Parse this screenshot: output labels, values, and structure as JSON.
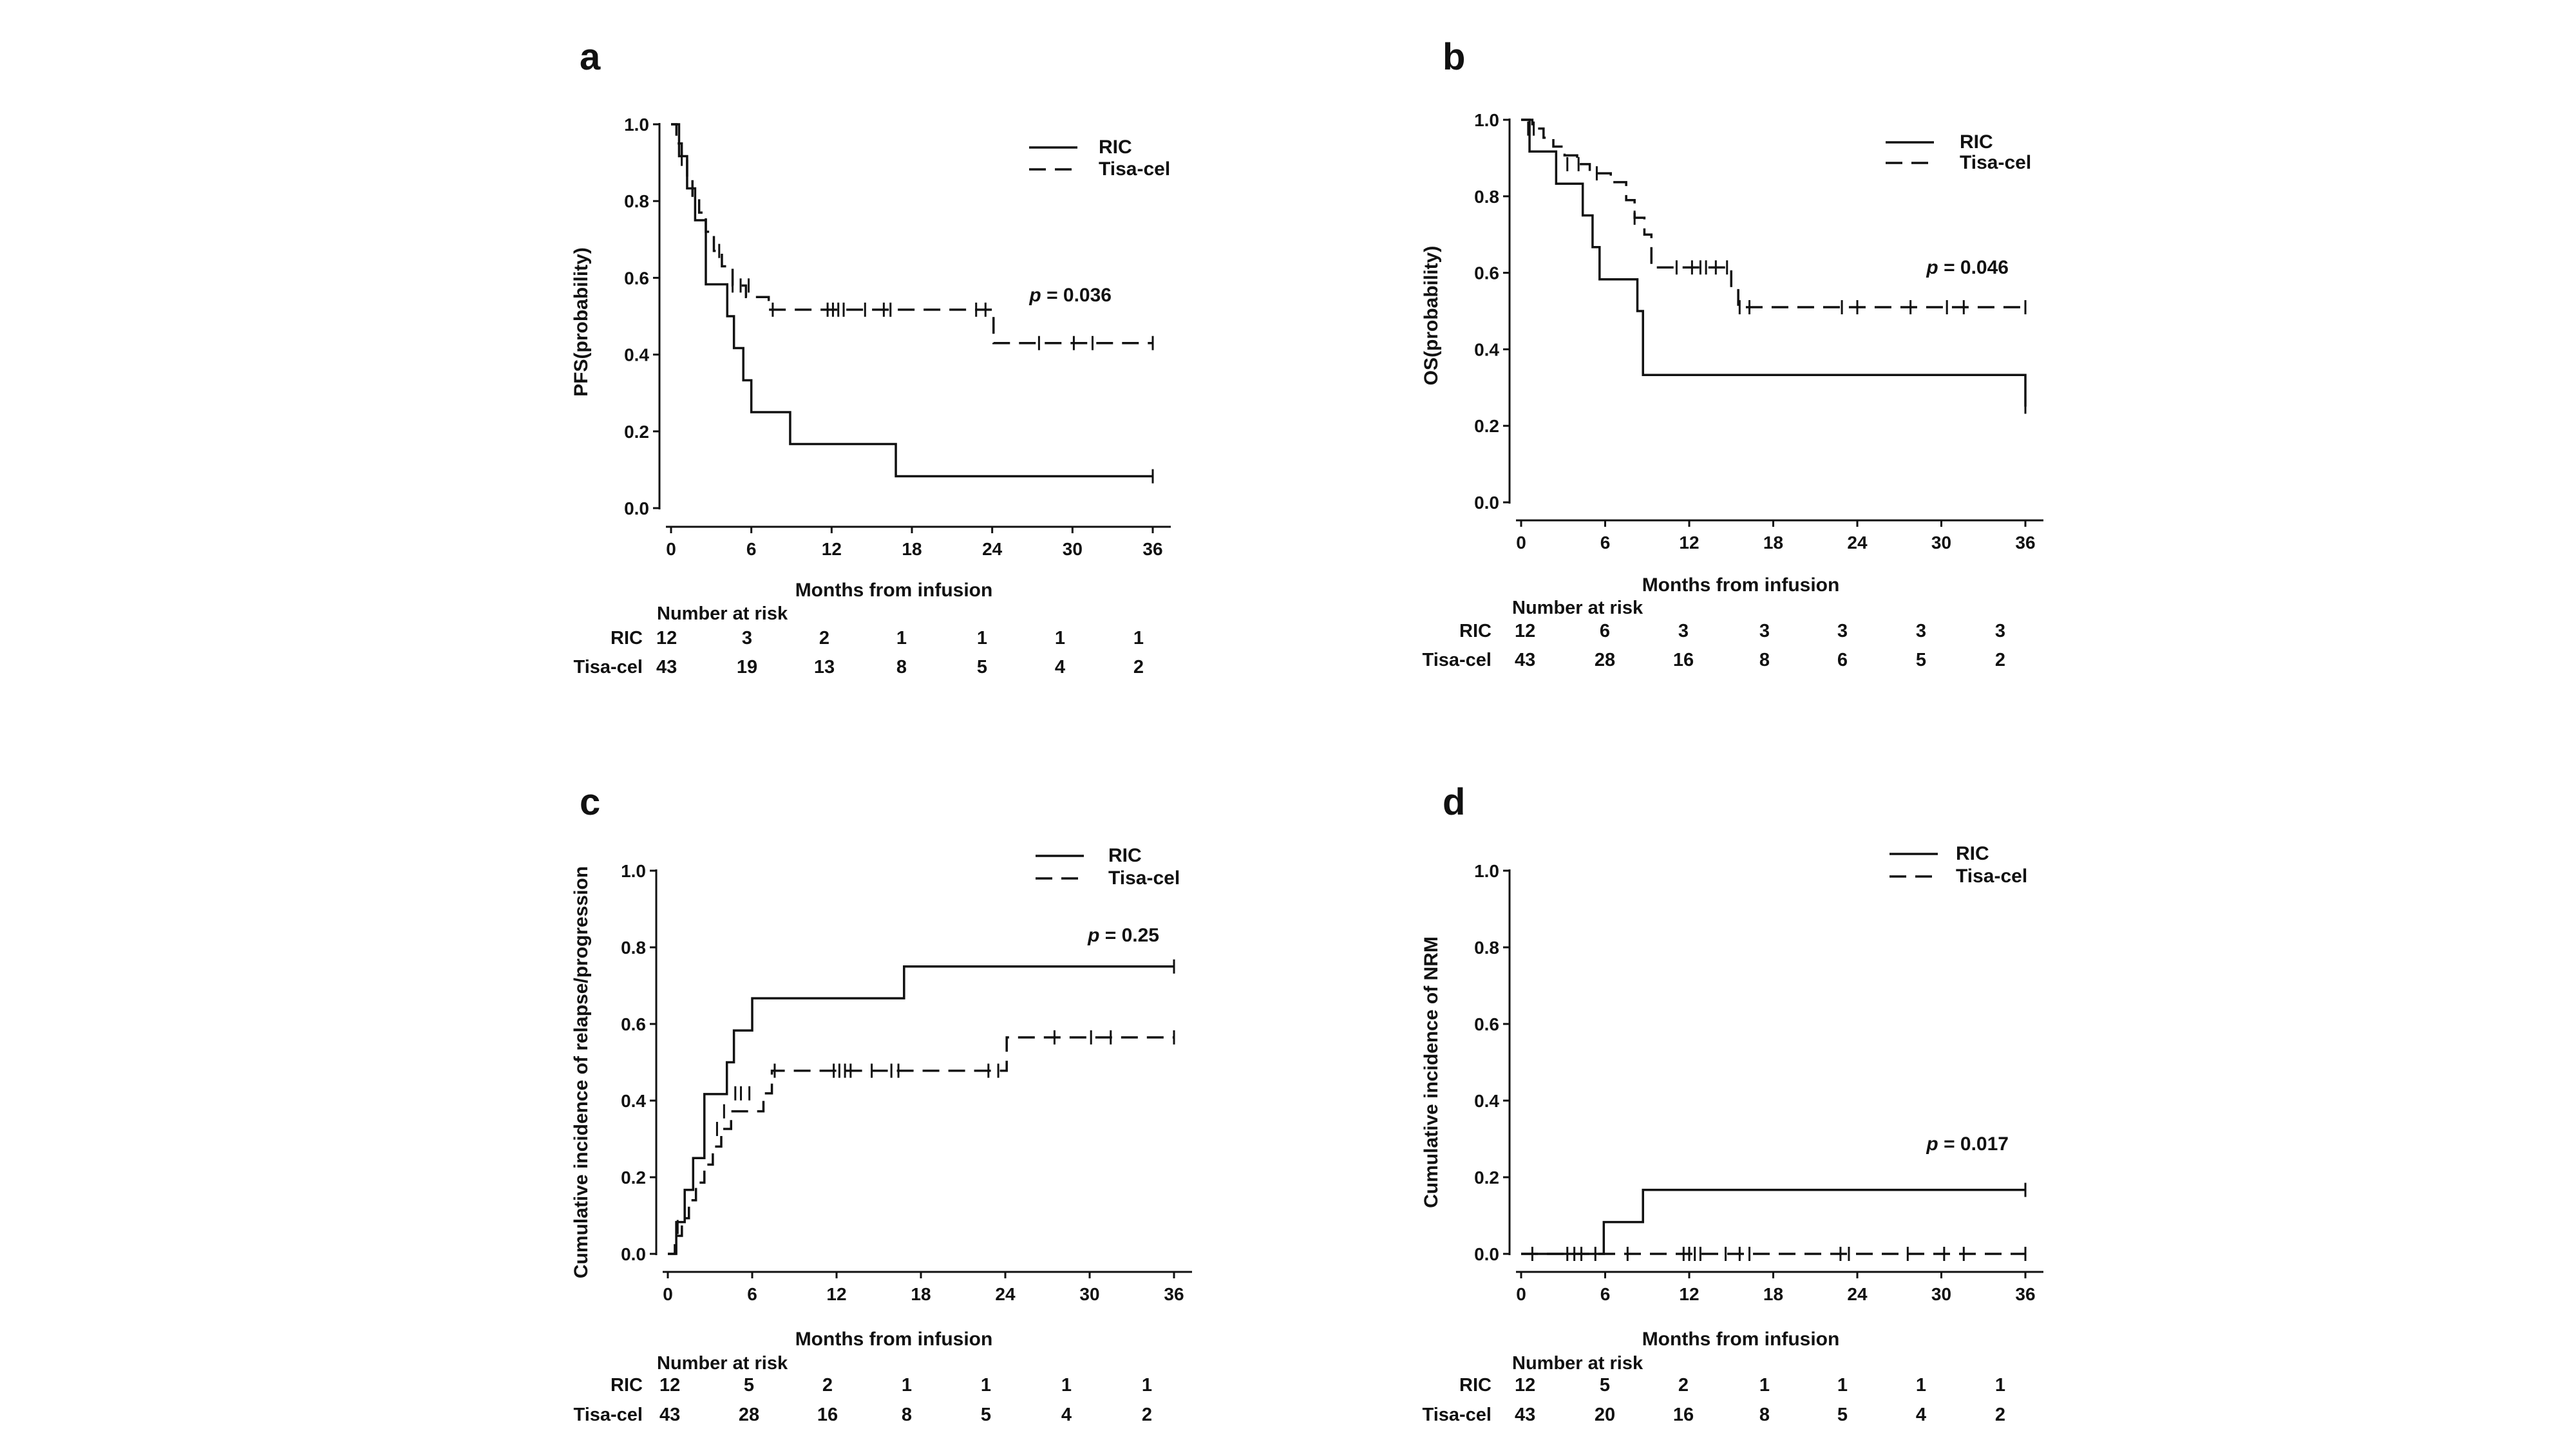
{
  "chart_data": [
    {
      "type": "line",
      "panel": "a",
      "ylabel": "PFS(probability)",
      "xlabel": "Months from infusion",
      "xticks": [
        0,
        6,
        12,
        18,
        24,
        30,
        36
      ],
      "yticks": [
        "0.0",
        "0.2",
        "0.4",
        "0.6",
        "0.8",
        "1.0"
      ],
      "xlim": [
        0,
        36
      ],
      "ylim": [
        0,
        1
      ],
      "p_value": "= 0.036",
      "series": [
        {
          "name": "RIC",
          "dash": false,
          "x": [
            0,
            0.6,
            1.2,
            1.8,
            2.6,
            4.2,
            4.7,
            5.4,
            6.0,
            8.9,
            16.8,
            36
          ],
          "y": [
            1.0,
            0.917,
            0.833,
            0.75,
            0.583,
            0.5,
            0.417,
            0.333,
            0.25,
            0.167,
            0.083,
            0.083
          ],
          "censored": [
            [
              36,
              0.083
            ]
          ]
        },
        {
          "name": "Tisa-cel",
          "dash": true,
          "x": [
            0,
            0.4,
            0.8,
            1.2,
            1.6,
            2.1,
            2.6,
            3.2,
            3.8,
            4.6,
            5.6,
            7.3,
            24.1,
            36
          ],
          "y": [
            1.0,
            0.95,
            0.91,
            0.86,
            0.81,
            0.77,
            0.72,
            0.67,
            0.63,
            0.58,
            0.55,
            0.517,
            0.43,
            0.43
          ],
          "censored": [
            [
              0.8,
              0.91
            ],
            [
              3.6,
              0.67
            ],
            [
              4.6,
              0.58
            ],
            [
              5.2,
              0.58
            ],
            [
              5.8,
              0.58
            ],
            [
              7.6,
              0.517
            ],
            [
              11.7,
              0.517
            ],
            [
              12.1,
              0.517
            ],
            [
              12.5,
              0.517
            ],
            [
              12.9,
              0.517
            ],
            [
              14.5,
              0.517
            ],
            [
              15.9,
              0.517
            ],
            [
              16.4,
              0.517
            ],
            [
              22.8,
              0.517
            ],
            [
              23.5,
              0.517
            ],
            [
              27.5,
              0.43
            ],
            [
              30.1,
              0.43
            ],
            [
              31.5,
              0.43
            ],
            [
              36,
              0.43
            ]
          ]
        }
      ],
      "risk_table": {
        "title": "Number at risk",
        "rows": [
          {
            "label": "RIC",
            "values": [
              "12",
              "3",
              "2",
              "1",
              "1",
              "1",
              "1"
            ]
          },
          {
            "label": "Tisa-cel",
            "values": [
              "43",
              "19",
              "13",
              "8",
              "5",
              "4",
              "2"
            ]
          }
        ]
      }
    },
    {
      "type": "line",
      "panel": "b",
      "ylabel": "OS(probability)",
      "xlabel": "Months from infusion",
      "xticks": [
        0,
        6,
        12,
        18,
        24,
        30,
        36
      ],
      "yticks": [
        "0.0",
        "0.2",
        "0.4",
        "0.6",
        "0.8",
        "1.0"
      ],
      "xlim": [
        0,
        36
      ],
      "ylim": [
        0,
        1
      ],
      "p_value": "= 0.046",
      "series": [
        {
          "name": "RIC",
          "dash": false,
          "x": [
            0,
            0.6,
            2.5,
            4.4,
            5.1,
            5.6,
            8.3,
            8.7,
            36
          ],
          "y": [
            1.0,
            0.917,
            0.833,
            0.75,
            0.667,
            0.583,
            0.5,
            0.333,
            0.25
          ],
          "censored": [
            [
              36,
              0.25
            ]
          ]
        },
        {
          "name": "Tisa-cel",
          "dash": true,
          "x": [
            0,
            0.8,
            1.6,
            2.3,
            3.1,
            4.0,
            4.9,
            6.4,
            7.5,
            8.1,
            8.8,
            9.3,
            15.0,
            15.5,
            36
          ],
          "y": [
            1.0,
            0.977,
            0.953,
            0.93,
            0.907,
            0.884,
            0.86,
            0.837,
            0.79,
            0.744,
            0.7,
            0.614,
            0.56,
            0.51,
            0.51
          ],
          "censored": [
            [
              0.5,
              0.977
            ],
            [
              0.9,
              0.977
            ],
            [
              3.3,
              0.884
            ],
            [
              4.1,
              0.884
            ],
            [
              5.4,
              0.86
            ],
            [
              8.1,
              0.744
            ],
            [
              11.1,
              0.614
            ],
            [
              12.2,
              0.614
            ],
            [
              12.8,
              0.614
            ],
            [
              13.2,
              0.614
            ],
            [
              13.9,
              0.614
            ],
            [
              14.7,
              0.614
            ],
            [
              15.6,
              0.51
            ],
            [
              16.3,
              0.51
            ],
            [
              22.9,
              0.51
            ],
            [
              24.0,
              0.51
            ],
            [
              27.8,
              0.51
            ],
            [
              30.4,
              0.51
            ],
            [
              31.6,
              0.51
            ],
            [
              36,
              0.51
            ]
          ]
        }
      ],
      "risk_table": {
        "title": "Number at risk",
        "rows": [
          {
            "label": "RIC",
            "values": [
              "12",
              "6",
              "3",
              "3",
              "3",
              "3",
              "3"
            ]
          },
          {
            "label": "Tisa-cel",
            "values": [
              "43",
              "28",
              "16",
              "8",
              "6",
              "5",
              "2"
            ]
          }
        ]
      }
    },
    {
      "type": "line",
      "panel": "c",
      "ylabel": "Cumulative incidence of relapse/progression",
      "xlabel": "Months from infusion",
      "xticks": [
        0,
        6,
        12,
        18,
        24,
        30,
        36
      ],
      "yticks": [
        "0.0",
        "0.2",
        "0.4",
        "0.6",
        "0.8",
        "1.0"
      ],
      "xlim": [
        0,
        36
      ],
      "ylim": [
        0,
        1
      ],
      "p_value": "= 0.25",
      "series": [
        {
          "name": "RIC",
          "dash": false,
          "x": [
            0,
            0.6,
            1.2,
            1.8,
            2.6,
            4.2,
            4.7,
            5.4,
            6.0,
            16.8,
            36
          ],
          "y": [
            0,
            0.083,
            0.167,
            0.25,
            0.417,
            0.5,
            0.583,
            0.583,
            0.667,
            0.75,
            0.75
          ],
          "censored": [
            [
              36,
              0.75
            ]
          ]
        },
        {
          "name": "Tisa-cel",
          "dash": true,
          "x": [
            0,
            0.5,
            1.0,
            1.5,
            2.0,
            2.6,
            3.2,
            3.8,
            4.5,
            6.8,
            7.4,
            24.1,
            36
          ],
          "y": [
            0,
            0.047,
            0.093,
            0.14,
            0.186,
            0.233,
            0.28,
            0.326,
            0.372,
            0.419,
            0.478,
            0.565,
            0.565
          ],
          "censored": [
            [
              0.7,
              0.07
            ],
            [
              3.5,
              0.326
            ],
            [
              4.0,
              0.372
            ],
            [
              4.8,
              0.419
            ],
            [
              5.2,
              0.419
            ],
            [
              5.8,
              0.419
            ],
            [
              7.6,
              0.478
            ],
            [
              11.8,
              0.478
            ],
            [
              12.2,
              0.478
            ],
            [
              12.6,
              0.478
            ],
            [
              13.0,
              0.478
            ],
            [
              14.5,
              0.478
            ],
            [
              15.9,
              0.478
            ],
            [
              16.4,
              0.478
            ],
            [
              22.8,
              0.478
            ],
            [
              23.5,
              0.478
            ],
            [
              27.5,
              0.565
            ],
            [
              30.1,
              0.565
            ],
            [
              31.5,
              0.565
            ],
            [
              36,
              0.565
            ]
          ]
        }
      ],
      "risk_table": {
        "title": "Number at risk",
        "rows": [
          {
            "label": "RIC",
            "values": [
              "12",
              "5",
              "2",
              "1",
              "1",
              "1",
              "1"
            ]
          },
          {
            "label": "Tisa-cel",
            "values": [
              "43",
              "28",
              "16",
              "8",
              "5",
              "4",
              "2"
            ]
          }
        ]
      }
    },
    {
      "type": "line",
      "panel": "d",
      "ylabel": "Cumulative incidence of NRM",
      "xlabel": "Months from infusion",
      "xticks": [
        0,
        6,
        12,
        18,
        24,
        30,
        36
      ],
      "yticks": [
        "0.0",
        "0.2",
        "0.4",
        "0.6",
        "0.8",
        "1.0"
      ],
      "xlim": [
        0,
        36
      ],
      "ylim": [
        0,
        1
      ],
      "p_value": "= 0.017",
      "series": [
        {
          "name": "RIC",
          "dash": false,
          "x": [
            0,
            5.9,
            8.7,
            36
          ],
          "y": [
            0,
            0.083,
            0.167,
            0.167
          ],
          "censored": [
            [
              36,
              0.167
            ]
          ]
        },
        {
          "name": "Tisa-cel",
          "dash": true,
          "x": [
            0,
            36
          ],
          "y": [
            0,
            0
          ],
          "censored": [
            [
              0.8,
              0
            ],
            [
              3.3,
              0
            ],
            [
              3.8,
              0
            ],
            [
              4.3,
              0
            ],
            [
              5.3,
              0
            ],
            [
              7.6,
              0
            ],
            [
              11.6,
              0
            ],
            [
              12.0,
              0
            ],
            [
              12.4,
              0
            ],
            [
              12.8,
              0
            ],
            [
              14.6,
              0
            ],
            [
              15.6,
              0
            ],
            [
              16.3,
              0
            ],
            [
              22.8,
              0
            ],
            [
              23.4,
              0
            ],
            [
              27.6,
              0
            ],
            [
              30.2,
              0
            ],
            [
              31.6,
              0
            ],
            [
              36,
              0
            ]
          ]
        }
      ],
      "risk_table": {
        "title": "Number at risk",
        "rows": [
          {
            "label": "RIC",
            "values": [
              "12",
              "5",
              "2",
              "1",
              "1",
              "1",
              "1"
            ]
          },
          {
            "label": "Tisa-cel",
            "values": [
              "43",
              "20",
              "16",
              "8",
              "5",
              "4",
              "2"
            ]
          }
        ]
      }
    }
  ]
}
